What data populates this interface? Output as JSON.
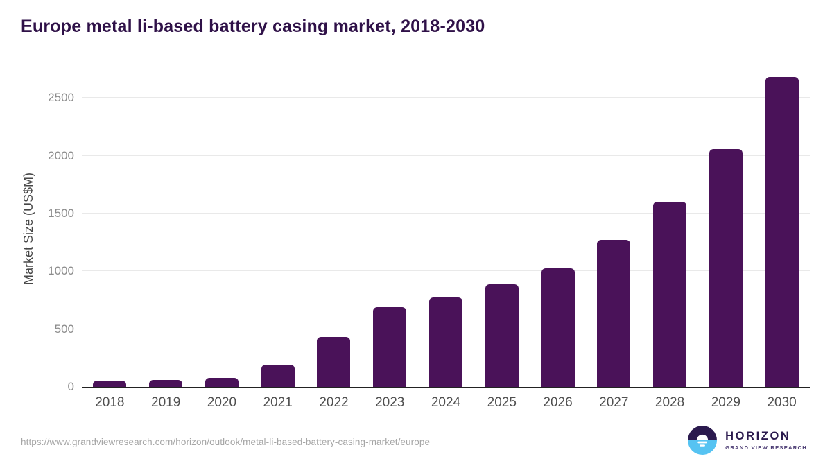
{
  "title": "Europe metal li-based battery casing market, 2018-2030",
  "chart_data": {
    "type": "bar",
    "title": "Europe metal li-based battery casing market, 2018-2030",
    "categories": [
      "2018",
      "2019",
      "2020",
      "2021",
      "2022",
      "2023",
      "2024",
      "2025",
      "2026",
      "2027",
      "2028",
      "2029",
      "2030"
    ],
    "values": [
      55,
      60,
      80,
      195,
      430,
      690,
      775,
      890,
      1025,
      1270,
      1605,
      2060,
      2685
    ],
    "xlabel": "",
    "ylabel": "Market Size (US$M)",
    "ylim": [
      0,
      2760
    ],
    "yticks": [
      0,
      500,
      1000,
      1500,
      2000,
      2500
    ],
    "grid": "horizontal",
    "legend": "none",
    "bar_color": "#4a1259"
  },
  "colors": {
    "title": "#2f1148",
    "bar": "#4a1259",
    "gridline": "#e9e9e9",
    "axis_line": "#222222",
    "y_tick": "#8c8c8c",
    "x_tick": "#4f4f4f",
    "url_text": "#a6a6a6",
    "logo_dark": "#2b1a4e",
    "logo_blue": "#56c3f2"
  },
  "footer": {
    "source_url": "https://www.grandviewresearch.com/horizon/outlook/metal-li-based-battery-casing-market/europe",
    "logo": {
      "name": "HORIZON",
      "tagline": "GRAND VIEW RESEARCH"
    }
  }
}
